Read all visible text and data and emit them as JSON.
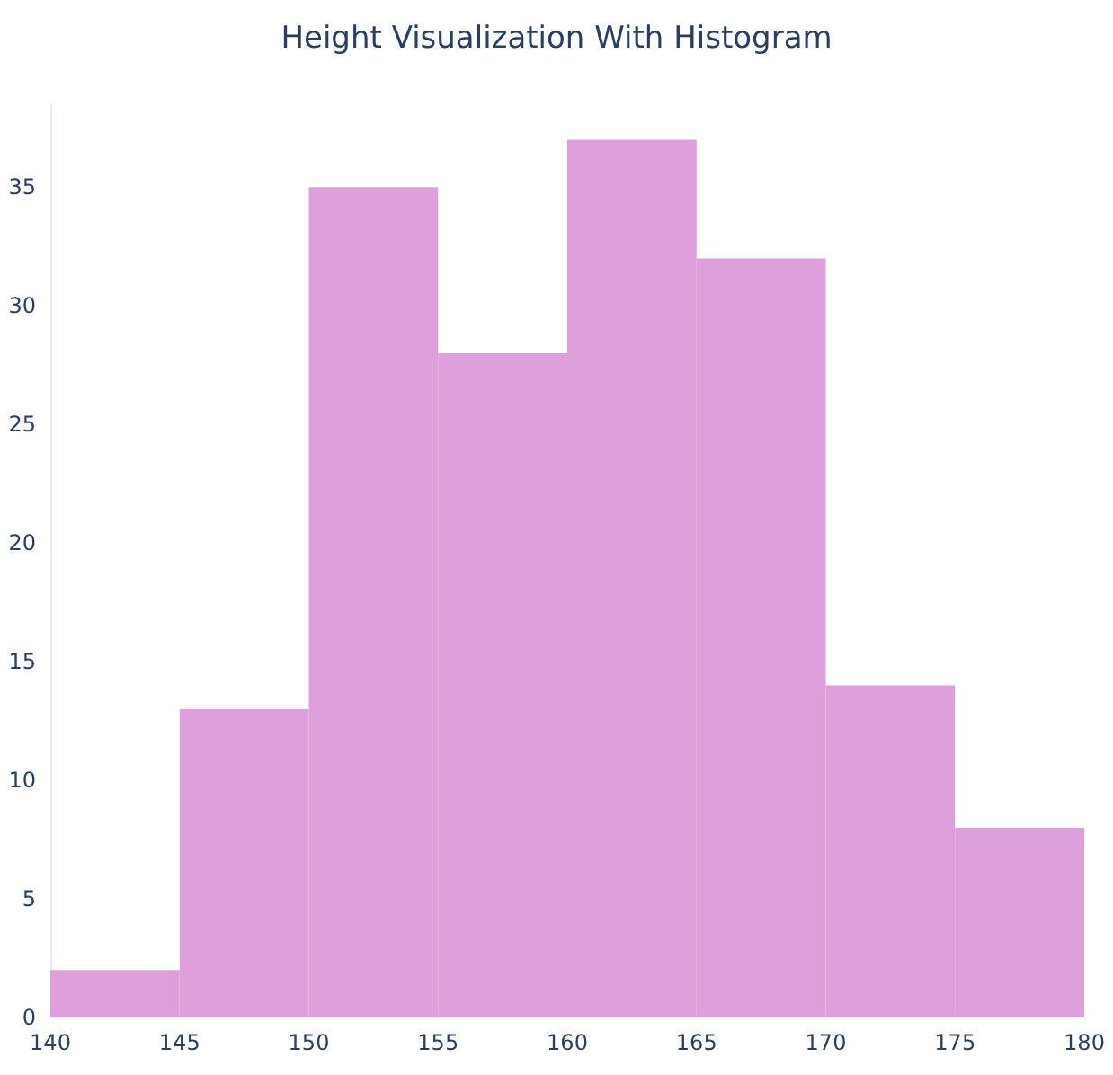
{
  "chart_data": {
    "type": "histogram",
    "title": "Height Visualization With Histogram",
    "bins": [
      140,
      145,
      150,
      155,
      160,
      165,
      170,
      175,
      180
    ],
    "values": [
      2,
      13,
      35,
      28,
      37,
      32,
      14,
      8
    ],
    "color": "#dda0dd",
    "xlim": [
      140,
      180
    ],
    "xticks": [
      140,
      145,
      150,
      155,
      160,
      165,
      170,
      175,
      180
    ],
    "ylim": [
      0,
      38.5
    ],
    "yticks": [
      0,
      5,
      10,
      15,
      20,
      25,
      30,
      35
    ],
    "grid": false
  }
}
